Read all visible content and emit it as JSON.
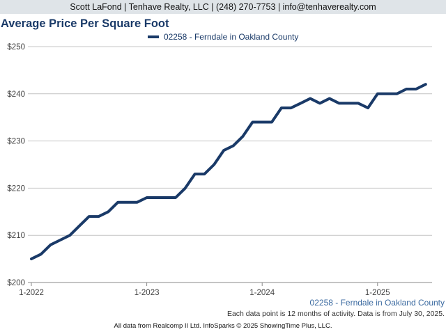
{
  "header": {
    "contact": "Scott LaFond | Tenhave Realty, LLC | (248) 270-7753 | info@tenhaverealty.com"
  },
  "colors": {
    "series": "#1a3a68",
    "grid": "#c4c4c4",
    "axis_text": "#444444",
    "area_label": "#3b6aa0"
  },
  "chart_data": {
    "type": "line",
    "title": "Average Price Per Square Foot",
    "xlabel": "",
    "ylabel": "",
    "ylim": [
      200,
      250
    ],
    "yticks": [
      200,
      210,
      220,
      230,
      240,
      250
    ],
    "ytick_labels": [
      "$200",
      "$210",
      "$220",
      "$230",
      "$240",
      "$250"
    ],
    "xtick_labels": [
      "1-2022",
      "1-2023",
      "1-2024",
      "1-2025"
    ],
    "grid": true,
    "legend_position": "top",
    "series": [
      {
        "name": "02258 - Ferndale in Oakland County",
        "x": [
          "2022-01",
          "2022-02",
          "2022-03",
          "2022-04",
          "2022-05",
          "2022-06",
          "2022-07",
          "2022-08",
          "2022-09",
          "2022-10",
          "2022-11",
          "2022-12",
          "2023-01",
          "2023-02",
          "2023-03",
          "2023-04",
          "2023-05",
          "2023-06",
          "2023-07",
          "2023-08",
          "2023-09",
          "2023-10",
          "2023-11",
          "2023-12",
          "2024-01",
          "2024-02",
          "2024-03",
          "2024-04",
          "2024-05",
          "2024-06",
          "2024-07",
          "2024-08",
          "2024-09",
          "2024-10",
          "2024-11",
          "2024-12",
          "2025-01",
          "2025-02",
          "2025-03",
          "2025-04",
          "2025-05",
          "2025-06"
        ],
        "values": [
          205,
          206,
          208,
          209,
          210,
          212,
          214,
          214,
          215,
          217,
          217,
          217,
          218,
          218,
          218,
          218,
          220,
          223,
          223,
          225,
          228,
          229,
          231,
          234,
          234,
          234,
          237,
          237,
          238,
          239,
          238,
          239,
          238,
          238,
          238,
          237,
          240,
          240,
          240,
          241,
          241,
          242
        ]
      }
    ]
  },
  "area_label": "02258 - Ferndale in Oakland County",
  "footnote": "Each data point is 12 months of activity. Data is from July 30, 2025.",
  "source": "All data from Realcomp II Ltd. InfoSparks © 2025 ShowingTime Plus, LLC."
}
